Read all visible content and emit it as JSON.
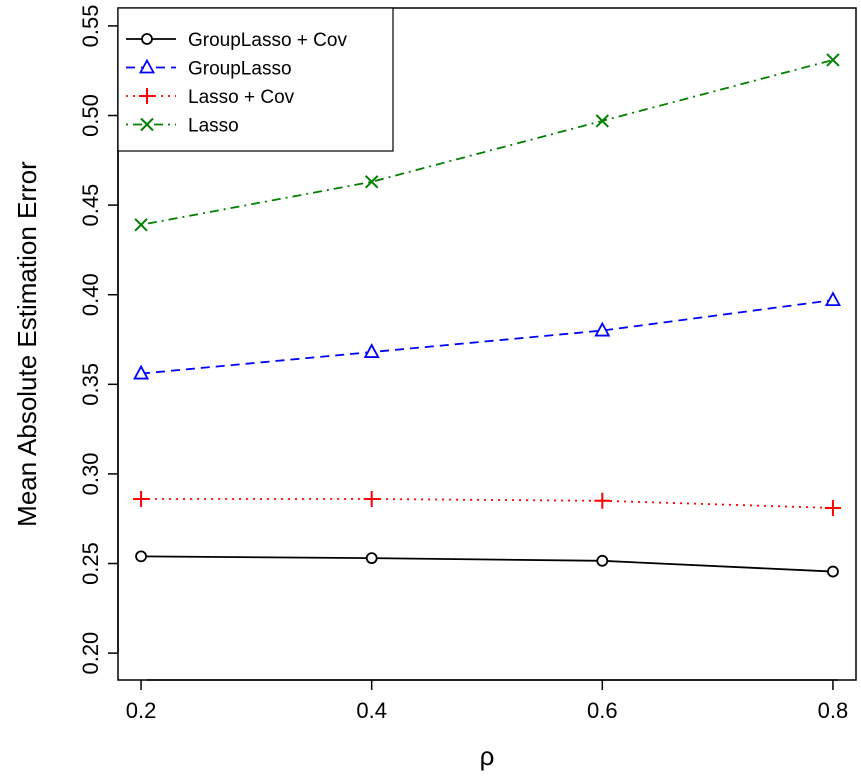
{
  "chart_data": {
    "type": "line",
    "title": "",
    "xlabel": "ρ",
    "ylabel": "Mean Absolute Estimation Error",
    "x": [
      0.2,
      0.4,
      0.6,
      0.8
    ],
    "x_ticks": [
      "0.2",
      "0.4",
      "0.6",
      "0.8"
    ],
    "y_ticks": [
      "0.20",
      "0.25",
      "0.30",
      "0.35",
      "0.40",
      "0.45",
      "0.50",
      "0.55"
    ],
    "xlim": [
      0.18,
      0.82
    ],
    "ylim": [
      0.185,
      0.56
    ],
    "grid": false,
    "legend_position": "top-left",
    "series": [
      {
        "name": "GroupLasso + Cov",
        "values": [
          0.254,
          0.253,
          0.2515,
          0.2455
        ],
        "color": "#000000",
        "marker": "circle",
        "line_style": "solid"
      },
      {
        "name": "GroupLasso",
        "values": [
          0.356,
          0.368,
          0.38,
          0.397
        ],
        "color": "#0000ff",
        "marker": "triangle",
        "line_style": "dashed"
      },
      {
        "name": "Lasso + Cov",
        "values": [
          0.286,
          0.286,
          0.285,
          0.281
        ],
        "color": "#ff0000",
        "marker": "plus",
        "line_style": "dotted"
      },
      {
        "name": "Lasso",
        "values": [
          0.439,
          0.463,
          0.497,
          0.531
        ],
        "color": "#008000",
        "marker": "cross",
        "line_style": "dashdot"
      }
    ]
  }
}
